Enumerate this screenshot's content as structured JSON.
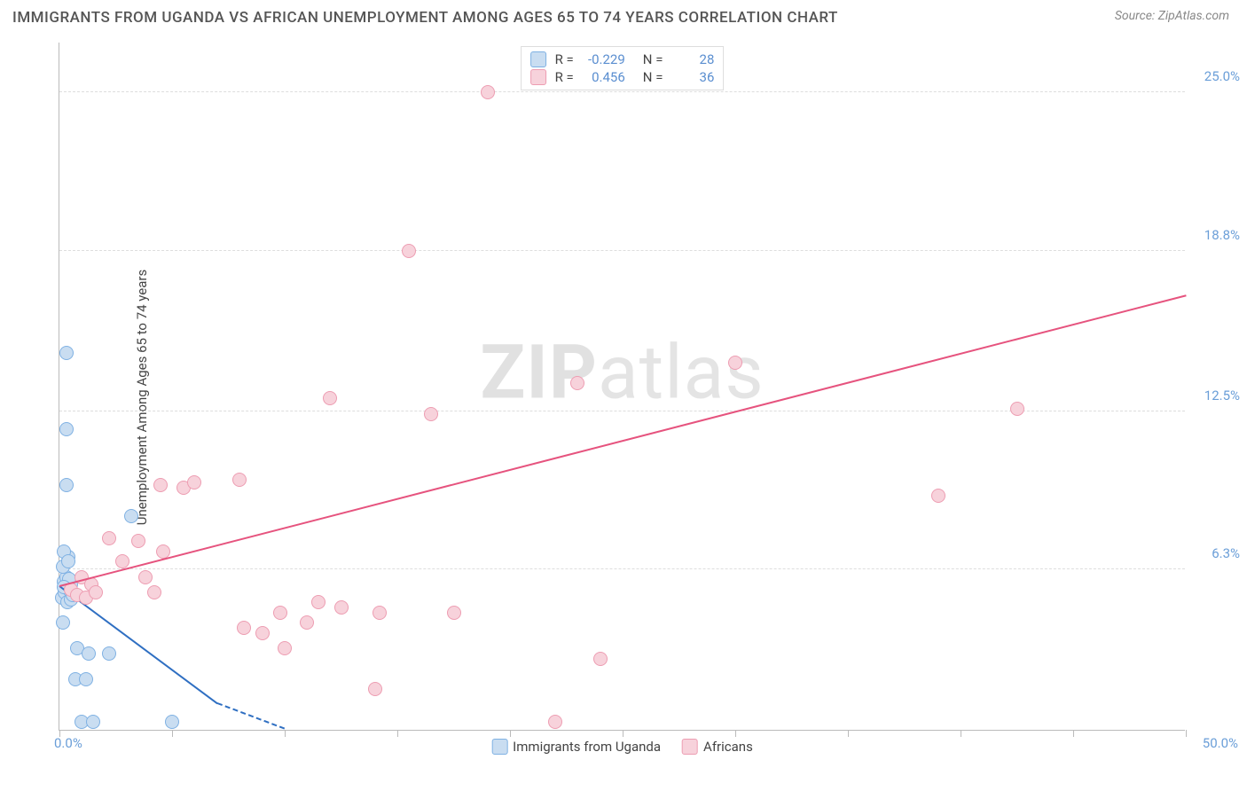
{
  "title": "IMMIGRANTS FROM UGANDA VS AFRICAN UNEMPLOYMENT AMONG AGES 65 TO 74 YEARS CORRELATION CHART",
  "source": "Source: ZipAtlas.com",
  "y_axis_label": "Unemployment Among Ages 65 to 74 years",
  "watermark_a": "ZIP",
  "watermark_b": "atlas",
  "chart": {
    "type": "scatter-with-regression",
    "xlim": [
      0,
      50
    ],
    "ylim": [
      0,
      27
    ],
    "x_origin_label": "0.0%",
    "x_max_label": "50.0%",
    "y_ticks": [
      {
        "v": 6.3,
        "label": "6.3%"
      },
      {
        "v": 12.5,
        "label": "12.5%"
      },
      {
        "v": 18.8,
        "label": "18.8%"
      },
      {
        "v": 25.0,
        "label": "25.0%"
      }
    ],
    "x_tick_step": 5,
    "background_color": "#ffffff",
    "grid_color": "#dddddd",
    "axis_color": "#bbbbbb",
    "marker_radius": 8,
    "series": [
      {
        "name": "Immigrants from Uganda",
        "fill": "#c9ddf1",
        "stroke": "#7fb1e3",
        "line_color": "#2f6fc2",
        "R": "-0.229",
        "N": "28",
        "trend": {
          "x1": 0,
          "y1": 5.6,
          "x2": 7.0,
          "y2": 1.0,
          "extend_x": 10.0,
          "extend_y": -1.0
        },
        "points": [
          [
            0.1,
            5.2
          ],
          [
            0.2,
            5.8
          ],
          [
            0.25,
            5.4
          ],
          [
            0.3,
            6.0
          ],
          [
            0.15,
            6.4
          ],
          [
            0.35,
            5.0
          ],
          [
            0.4,
            6.8
          ],
          [
            0.45,
            5.5
          ],
          [
            0.2,
            7.0
          ],
          [
            0.5,
            5.1
          ],
          [
            0.15,
            4.2
          ],
          [
            0.3,
            14.8
          ],
          [
            0.3,
            11.8
          ],
          [
            0.3,
            9.6
          ],
          [
            0.4,
            6.6
          ],
          [
            0.8,
            3.2
          ],
          [
            1.3,
            3.0
          ],
          [
            2.2,
            3.0
          ],
          [
            0.7,
            2.0
          ],
          [
            1.2,
            2.0
          ],
          [
            1.0,
            0.3
          ],
          [
            1.5,
            0.3
          ],
          [
            5.0,
            0.3
          ],
          [
            0.5,
            5.7
          ],
          [
            0.6,
            5.3
          ],
          [
            3.2,
            8.4
          ],
          [
            0.45,
            5.9
          ],
          [
            0.2,
            5.6
          ]
        ]
      },
      {
        "name": "Africans",
        "fill": "#f7d2db",
        "stroke": "#ed9db2",
        "line_color": "#e6537e",
        "R": "0.456",
        "N": "36",
        "trend": {
          "x1": 0,
          "y1": 5.6,
          "x2": 50,
          "y2": 17.0
        },
        "points": [
          [
            0.5,
            5.5
          ],
          [
            0.8,
            5.3
          ],
          [
            1.0,
            6.0
          ],
          [
            1.2,
            5.2
          ],
          [
            1.4,
            5.7
          ],
          [
            1.6,
            5.4
          ],
          [
            2.2,
            7.5
          ],
          [
            2.8,
            6.6
          ],
          [
            3.5,
            7.4
          ],
          [
            3.8,
            6.0
          ],
          [
            4.2,
            5.4
          ],
          [
            4.6,
            7.0
          ],
          [
            4.5,
            9.6
          ],
          [
            5.5,
            9.5
          ],
          [
            6.0,
            9.7
          ],
          [
            8.0,
            9.8
          ],
          [
            8.2,
            4.0
          ],
          [
            9.0,
            3.8
          ],
          [
            9.8,
            4.6
          ],
          [
            10.0,
            3.2
          ],
          [
            11.0,
            4.2
          ],
          [
            11.5,
            5.0
          ],
          [
            12.5,
            4.8
          ],
          [
            14.0,
            1.6
          ],
          [
            14.2,
            4.6
          ],
          [
            17.5,
            4.6
          ],
          [
            12.0,
            13.0
          ],
          [
            15.5,
            18.8
          ],
          [
            16.5,
            12.4
          ],
          [
            19.0,
            25.0
          ],
          [
            23.0,
            13.6
          ],
          [
            24.0,
            2.8
          ],
          [
            22.0,
            0.3
          ],
          [
            30.0,
            14.4
          ],
          [
            39.0,
            9.2
          ],
          [
            42.5,
            12.6
          ]
        ]
      }
    ]
  },
  "legend_bottom": [
    {
      "label": "Immigrants from Uganda",
      "fill": "#c9ddf1",
      "stroke": "#7fb1e3"
    },
    {
      "label": "Africans",
      "fill": "#f7d2db",
      "stroke": "#ed9db2"
    }
  ]
}
